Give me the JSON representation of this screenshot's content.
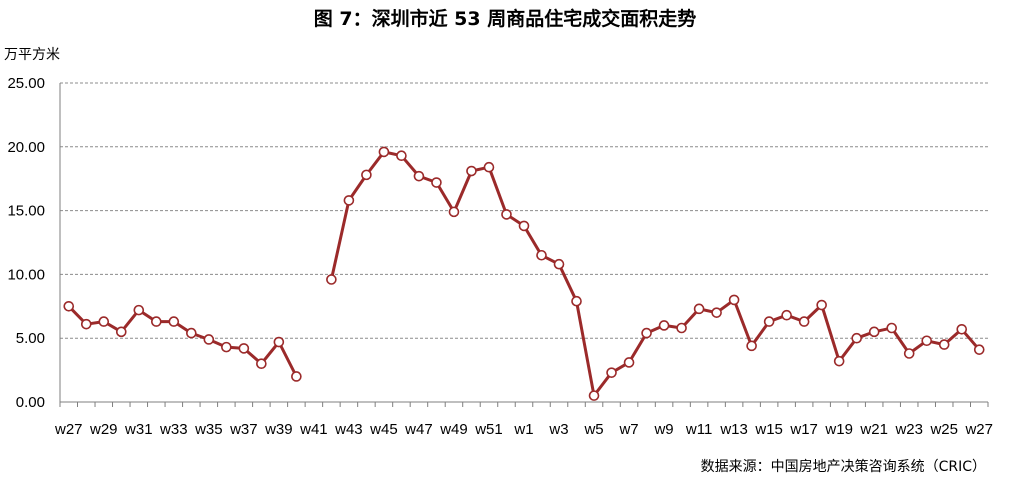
{
  "chart_data": {
    "type": "line",
    "title": "图 7：深圳市近 53 周商品住宅成交面积走势",
    "ylabel": "万平方米",
    "source": "数据来源：中国房地产决策咨询系统（CRIC）",
    "ylim": [
      0,
      25
    ],
    "yticks": [
      "0.00",
      "5.00",
      "10.00",
      "15.00",
      "20.00",
      "25.00"
    ],
    "grid": true,
    "legend": "none",
    "line_color": "#9b2a2a",
    "marker_fill": "#ffffff",
    "x": [
      "w27",
      "w28",
      "w29",
      "w30",
      "w31",
      "w32",
      "w33",
      "w34",
      "w35",
      "w36",
      "w37",
      "w38",
      "w39",
      "w40",
      "w41",
      "w42",
      "w43",
      "w44",
      "w45",
      "w46",
      "w47",
      "w48",
      "w49",
      "w50",
      "w51",
      "w52",
      "w1",
      "w2",
      "w3",
      "w4",
      "w5",
      "w6",
      "w7",
      "w8",
      "w9",
      "w10",
      "w11",
      "w12",
      "w13",
      "w14",
      "w15",
      "w16",
      "w17",
      "w18",
      "w19",
      "w20",
      "w21",
      "w22",
      "w23",
      "w24",
      "w25",
      "w26",
      "w27"
    ],
    "xtick_labels": [
      "w27",
      "w29",
      "w31",
      "w33",
      "w35",
      "w37",
      "w39",
      "w41",
      "w43",
      "w45",
      "w47",
      "w49",
      "w51",
      "w1",
      "w3",
      "w5",
      "w7",
      "w9",
      "w11",
      "w13",
      "w15",
      "w17",
      "w19",
      "w21",
      "w23",
      "w25",
      "w27"
    ],
    "series": [
      {
        "values": [
          7.5,
          6.1,
          6.3,
          5.5,
          7.2,
          6.3,
          6.3,
          5.4,
          4.9,
          4.3,
          4.2,
          3.0,
          4.7,
          2.0,
          null,
          9.6,
          15.8,
          17.8,
          19.6,
          19.3,
          17.7,
          17.2,
          14.9,
          18.1,
          18.4,
          14.7,
          13.8,
          11.5,
          10.8,
          7.9,
          0.5,
          2.3,
          3.1,
          5.4,
          6.0,
          5.8,
          7.3,
          7.0,
          8.0,
          4.4,
          6.3,
          6.8,
          6.3,
          7.6,
          3.2,
          5.0,
          5.5,
          5.8,
          3.8,
          4.8,
          4.5,
          5.7,
          4.1
        ]
      }
    ]
  }
}
